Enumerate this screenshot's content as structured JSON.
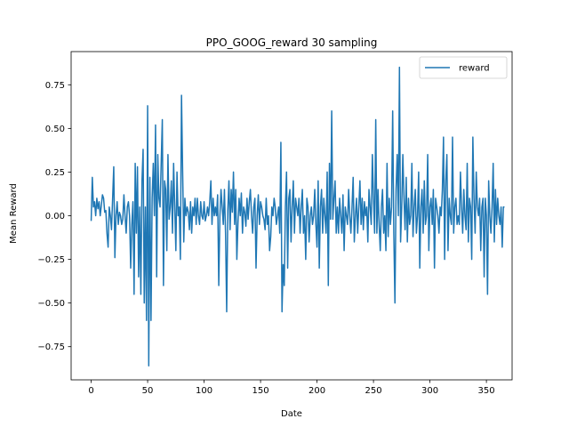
{
  "chart_data": {
    "type": "line",
    "title": "PPO_GOOG_reward 30 sampling",
    "xlabel": "Date",
    "ylabel": "Mean Reward",
    "xlim": [
      -17.75,
      372.75
    ],
    "ylim": [
      -0.94,
      0.94
    ],
    "x_ticks": [
      0,
      50,
      100,
      150,
      200,
      250,
      300,
      350
    ],
    "x_tick_labels": [
      "0",
      "50",
      "100",
      "150",
      "200",
      "250",
      "300",
      "350"
    ],
    "y_ticks": [
      -0.75,
      -0.5,
      -0.25,
      0.0,
      0.25,
      0.5,
      0.75
    ],
    "y_tick_labels": [
      "−0.75",
      "−0.50",
      "−0.25",
      "0.00",
      "0.25",
      "0.50",
      "0.75"
    ],
    "grid": false,
    "legend_position": "top-right",
    "series": [
      {
        "name": "reward",
        "color": "#1f77b4",
        "values": [
          -0.03,
          0.22,
          0.05,
          0.08,
          0.0,
          0.1,
          0.04,
          0.08,
          0.0,
          0.06,
          0.12,
          0.1,
          0.02,
          0.03,
          -0.1,
          -0.18,
          0.05,
          0.0,
          -0.08,
          0.1,
          0.28,
          -0.24,
          0.0,
          0.08,
          -0.05,
          0.02,
          0.0,
          -0.05,
          -0.02,
          0.12,
          0.0,
          -0.1,
          0.05,
          0.08,
          0.0,
          -0.3,
          -0.05,
          0.08,
          -0.45,
          0.3,
          -0.1,
          0.28,
          -0.35,
          0.05,
          -0.45,
          0.2,
          0.38,
          -0.5,
          0.05,
          -0.6,
          0.63,
          -0.86,
          0.22,
          -0.6,
          0.1,
          0.3,
          0.0,
          0.52,
          -0.35,
          0.35,
          0.1,
          0.05,
          0.3,
          0.55,
          -0.4,
          0.2,
          0.15,
          -0.2,
          0.35,
          -0.02,
          0.05,
          0.2,
          -0.1,
          0.3,
          0.05,
          -0.2,
          0.25,
          0.0,
          0.05,
          -0.25,
          0.69,
          0.25,
          -0.15,
          0.1,
          0.0,
          0.05,
          0.02,
          -0.08,
          0.08,
          -0.1,
          0.05,
          0.0,
          0.1,
          -0.05,
          0.1,
          0.0,
          -0.05,
          0.08,
          0.0,
          -0.02,
          0.08,
          -0.03,
          0.0,
          0.05,
          0.0,
          0.08,
          0.2,
          -0.05,
          0.1,
          0.0,
          0.05,
          0.0,
          0.12,
          -0.4,
          0.0,
          0.15,
          0.05,
          -0.05,
          0.15,
          -0.1,
          -0.55,
          0.03,
          0.2,
          -0.08,
          0.15,
          0.02,
          0.25,
          -0.05,
          0.15,
          -0.25,
          -0.04,
          0.1,
          0.0,
          0.13,
          -0.1,
          0.05,
          0.02,
          -0.06,
          0.1,
          -0.02,
          0.08,
          0.15,
          0.0,
          -0.1,
          0.05,
          0.1,
          -0.3,
          0.0,
          0.12,
          -0.05,
          0.08,
          0.05,
          0.0,
          -0.02,
          -0.08,
          0.1,
          -0.05,
          0.0,
          -0.2,
          -0.12,
          0.05,
          0.0,
          0.1,
          0.05,
          -0.05,
          0.0,
          0.05,
          -0.1,
          0.42,
          -0.55,
          -0.28,
          -0.4,
          0.05,
          0.25,
          -0.3,
          0.1,
          0.15,
          -0.15,
          0.05,
          0.2,
          -0.1,
          0.1,
          0.05,
          0.0,
          0.1,
          -0.1,
          0.05,
          0.15,
          -0.1,
          0.0,
          -0.25,
          0.1,
          0.05,
          -0.15,
          0.0,
          0.05,
          -0.05,
          0.0,
          0.15,
          -0.05,
          -0.18,
          0.2,
          -0.3,
          0.05,
          0.15,
          -0.1,
          0.1,
          0.0,
          -0.1,
          0.25,
          -0.4,
          0.3,
          -0.02,
          0.6,
          -0.02,
          0.1,
          0.2,
          -0.1,
          0.05,
          -0.1,
          0.1,
          0.0,
          -0.1,
          0.12,
          -0.2,
          0.05,
          0.0,
          -0.05,
          0.15,
          0.0,
          -0.1,
          0.05,
          0.22,
          -0.15,
          0.0,
          0.1,
          -0.1,
          0.05,
          0.2,
          -0.05,
          0.1,
          -0.08,
          0.08,
          0.0,
          0.05,
          -0.15,
          0.15,
          0.05,
          -0.05,
          0.35,
          0.1,
          -0.1,
          0.55,
          -0.1,
          0.15,
          -0.05,
          -0.2,
          0.05,
          0.15,
          -0.1,
          0.0,
          -0.2,
          0.3,
          -0.12,
          0.1,
          -0.05,
          0.05,
          0.6,
          -0.1,
          -0.5,
          0.15,
          0.35,
          0.0,
          0.85,
          -0.15,
          0.05,
          0.35,
          0.1,
          -0.08,
          0.22,
          -0.15,
          0.1,
          -0.05,
          0.0,
          0.3,
          -0.12,
          0.05,
          0.15,
          -0.1,
          0.0,
          0.25,
          -0.3,
          0.05,
          0.15,
          -0.1,
          0.2,
          -0.05,
          0.0,
          0.35,
          -0.2,
          0.05,
          0.1,
          -0.05,
          0.15,
          -0.3,
          0.1,
          0.05,
          0.0,
          -0.1,
          0.05,
          0.0,
          0.15,
          0.45,
          -0.25,
          0.2,
          0.35,
          -0.2,
          0.1,
          0.0,
          -0.05,
          0.45,
          -0.1,
          0.05,
          0.1,
          -0.05,
          0.0,
          -0.05,
          0.25,
          0.05,
          -0.1,
          0.15,
          0.0,
          -0.08,
          0.3,
          -0.15,
          0.1,
          0.05,
          -0.25,
          0.45,
          0.1,
          -0.1,
          0.25,
          0.05,
          0.0,
          0.1,
          -0.2,
          0.05,
          0.1,
          -0.35,
          0.1,
          0.0,
          -0.45,
          0.2,
          0.0,
          -0.1,
          0.05,
          0.3,
          -0.15,
          0.15,
          -0.05,
          0.1,
          0.0,
          -0.05,
          0.05,
          -0.18,
          0.05,
          0.05
        ]
      }
    ]
  }
}
